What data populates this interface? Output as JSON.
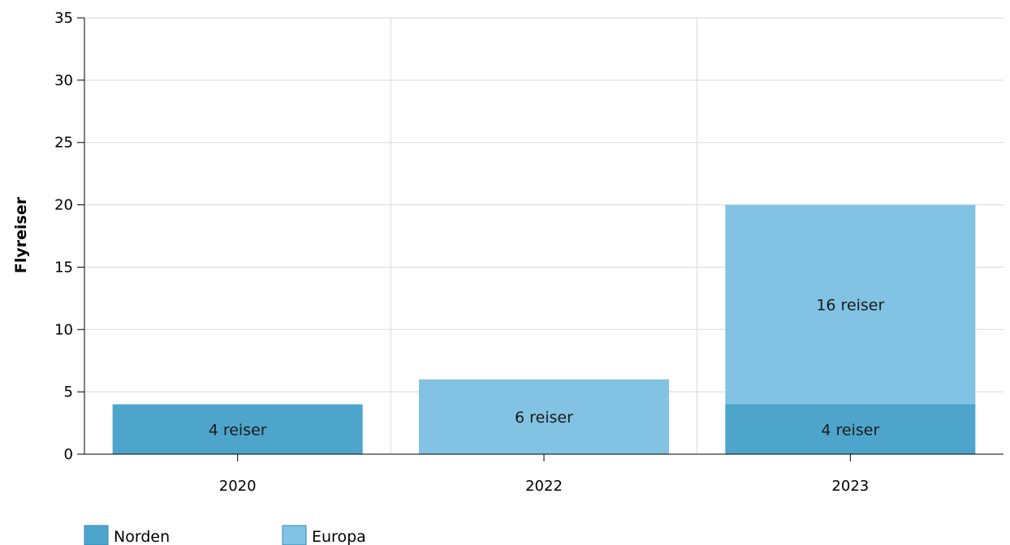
{
  "chart_data": {
    "type": "bar",
    "stacked": true,
    "categories": [
      "2020",
      "2022",
      "2023"
    ],
    "series": [
      {
        "name": "Norden",
        "color": "#4ea5cc",
        "values": [
          4,
          0,
          4
        ],
        "labels": [
          "4 reiser",
          "",
          "4 reiser"
        ]
      },
      {
        "name": "Europa",
        "color": "#82c3e3",
        "values": [
          0,
          6,
          16
        ],
        "labels": [
          "",
          "6 reiser",
          "16 reiser"
        ]
      }
    ],
    "title": "",
    "xlabel": "",
    "ylabel": "Flyreiser",
    "ylim": [
      0,
      35
    ],
    "yticks": [
      0,
      5,
      10,
      15,
      20,
      25,
      30,
      35
    ],
    "grid": true,
    "legend_position": "bottom-left"
  }
}
